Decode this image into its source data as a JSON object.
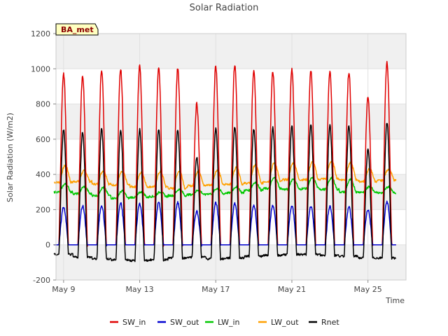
{
  "chart_data": {
    "type": "line",
    "title": "Solar Radiation",
    "xlabel": "Time",
    "ylabel": "Solar Radiation (W/m2)",
    "badge": "BA_met",
    "ylim": [
      -200,
      1200
    ],
    "xlim_days": [
      8.6,
      27.0
    ],
    "y_ticks": [
      -200,
      0,
      200,
      400,
      600,
      800,
      1000,
      1200
    ],
    "x_ticks": [
      {
        "day": 9,
        "label": "May 9"
      },
      {
        "day": 13,
        "label": "May 13"
      },
      {
        "day": 17,
        "label": "May 17"
      },
      {
        "day": 21,
        "label": "May 21"
      },
      {
        "day": 25,
        "label": "May 25"
      }
    ],
    "grid": true,
    "band_fill": "#f0f0f0",
    "legend_position": "bottom",
    "days": [
      "May 9",
      "May 10",
      "May 11",
      "May 12",
      "May 13",
      "May 14",
      "May 15",
      "May 16",
      "May 17",
      "May 18",
      "May 19",
      "May 20",
      "May 21",
      "May 22",
      "May 23",
      "May 24",
      "May 25",
      "May 26"
    ],
    "series": [
      {
        "name": "SW_in",
        "color": "#e00000",
        "daily_peak": [
          975,
          960,
          995,
          1000,
          1015,
          1005,
          1000,
          800,
          1015,
          1020,
          985,
          985,
          995,
          990,
          985,
          980,
          840,
          1040
        ],
        "night": 0
      },
      {
        "name": "SW_out",
        "color": "#0000d0",
        "daily_peak": [
          215,
          220,
          225,
          235,
          235,
          240,
          240,
          190,
          240,
          235,
          225,
          225,
          220,
          220,
          220,
          215,
          200,
          245
        ],
        "night": 0
      },
      {
        "name": "LW_in",
        "color": "#00c800",
        "daily_peak": [
          345,
          330,
          325,
          305,
          300,
          300,
          315,
          310,
          320,
          330,
          355,
          380,
          375,
          380,
          380,
          370,
          330,
          330
        ],
        "daily_low": [
          300,
          290,
          280,
          265,
          270,
          275,
          280,
          285,
          290,
          295,
          310,
          320,
          315,
          320,
          315,
          300,
          300,
          295
        ]
      },
      {
        "name": "LW_out",
        "color": "#ffa000",
        "daily_peak": [
          450,
          420,
          420,
          415,
          410,
          415,
          420,
          420,
          425,
          440,
          455,
          465,
          465,
          470,
          475,
          465,
          430,
          430
        ],
        "daily_low": [
          355,
          360,
          345,
          340,
          330,
          330,
          320,
          335,
          340,
          345,
          350,
          360,
          370,
          370,
          375,
          370,
          360,
          365
        ]
      },
      {
        "name": "Rnet",
        "color": "#000000",
        "daily_peak": [
          655,
          640,
          660,
          650,
          655,
          655,
          650,
          500,
          660,
          670,
          660,
          665,
          675,
          680,
          680,
          675,
          540,
          695
        ],
        "night": [
          -55,
          -70,
          -80,
          -85,
          -90,
          -85,
          -75,
          -70,
          -80,
          -75,
          -65,
          -60,
          -55,
          -55,
          -60,
          -65,
          -75,
          -75
        ]
      }
    ]
  }
}
